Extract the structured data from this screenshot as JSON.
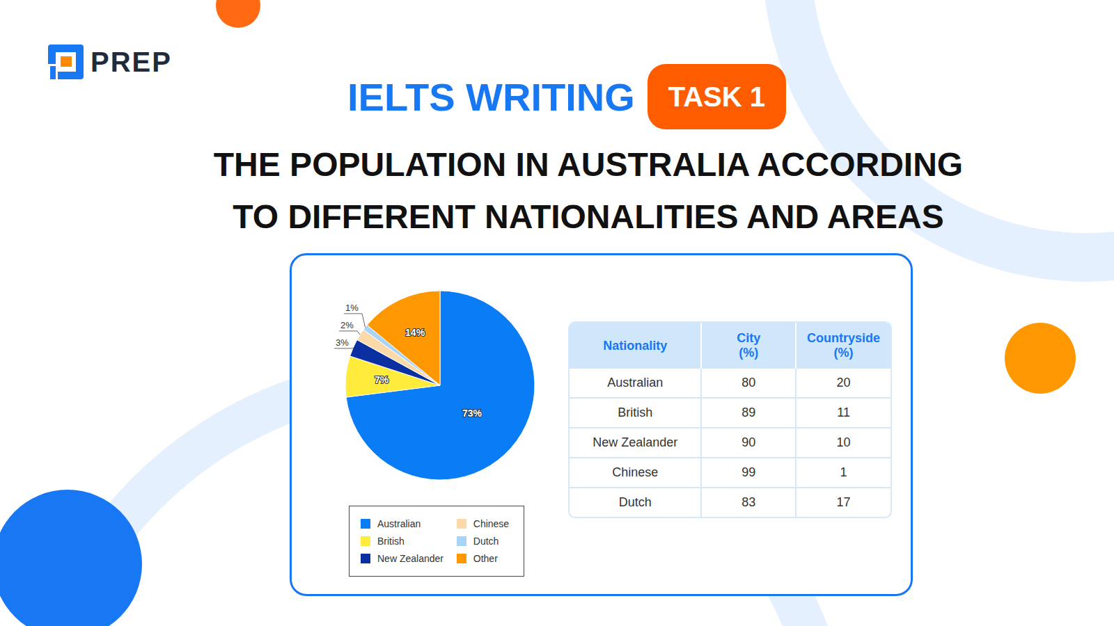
{
  "header": {
    "logo": "PREP",
    "title": "IELTS WRITING",
    "badge": "TASK 1",
    "headline": [
      "THE POPULATION IN AUSTRALIA ACCORDING",
      "TO DIFFERENT NATIONALITIES AND AREAS"
    ]
  },
  "chart_data": {
    "type": "pie",
    "categories": [
      "Australian",
      "British",
      "New Zealander",
      "Chinese",
      "Dutch",
      "Other"
    ],
    "values": [
      73,
      7,
      3,
      2,
      1,
      14
    ],
    "value_labels": [
      "73%",
      "7%",
      "3%",
      "2%",
      "1%",
      "14%"
    ],
    "colors": [
      "#0a7cf5",
      "#ffeb3b",
      "#0a2fa0",
      "#fcd9a8",
      "#a8d4f8",
      "#ff9800"
    ],
    "data_labels": true,
    "legend": "bottom"
  },
  "table": {
    "columns": [
      "Nationality",
      "City (%)",
      "Countryside (%)"
    ],
    "rows": [
      [
        "Australian",
        80,
        20
      ],
      [
        "British",
        89,
        11
      ],
      [
        "New Zealander",
        90,
        10
      ],
      [
        "Chinese",
        99,
        1
      ],
      [
        "Dutch",
        83,
        17
      ]
    ]
  }
}
